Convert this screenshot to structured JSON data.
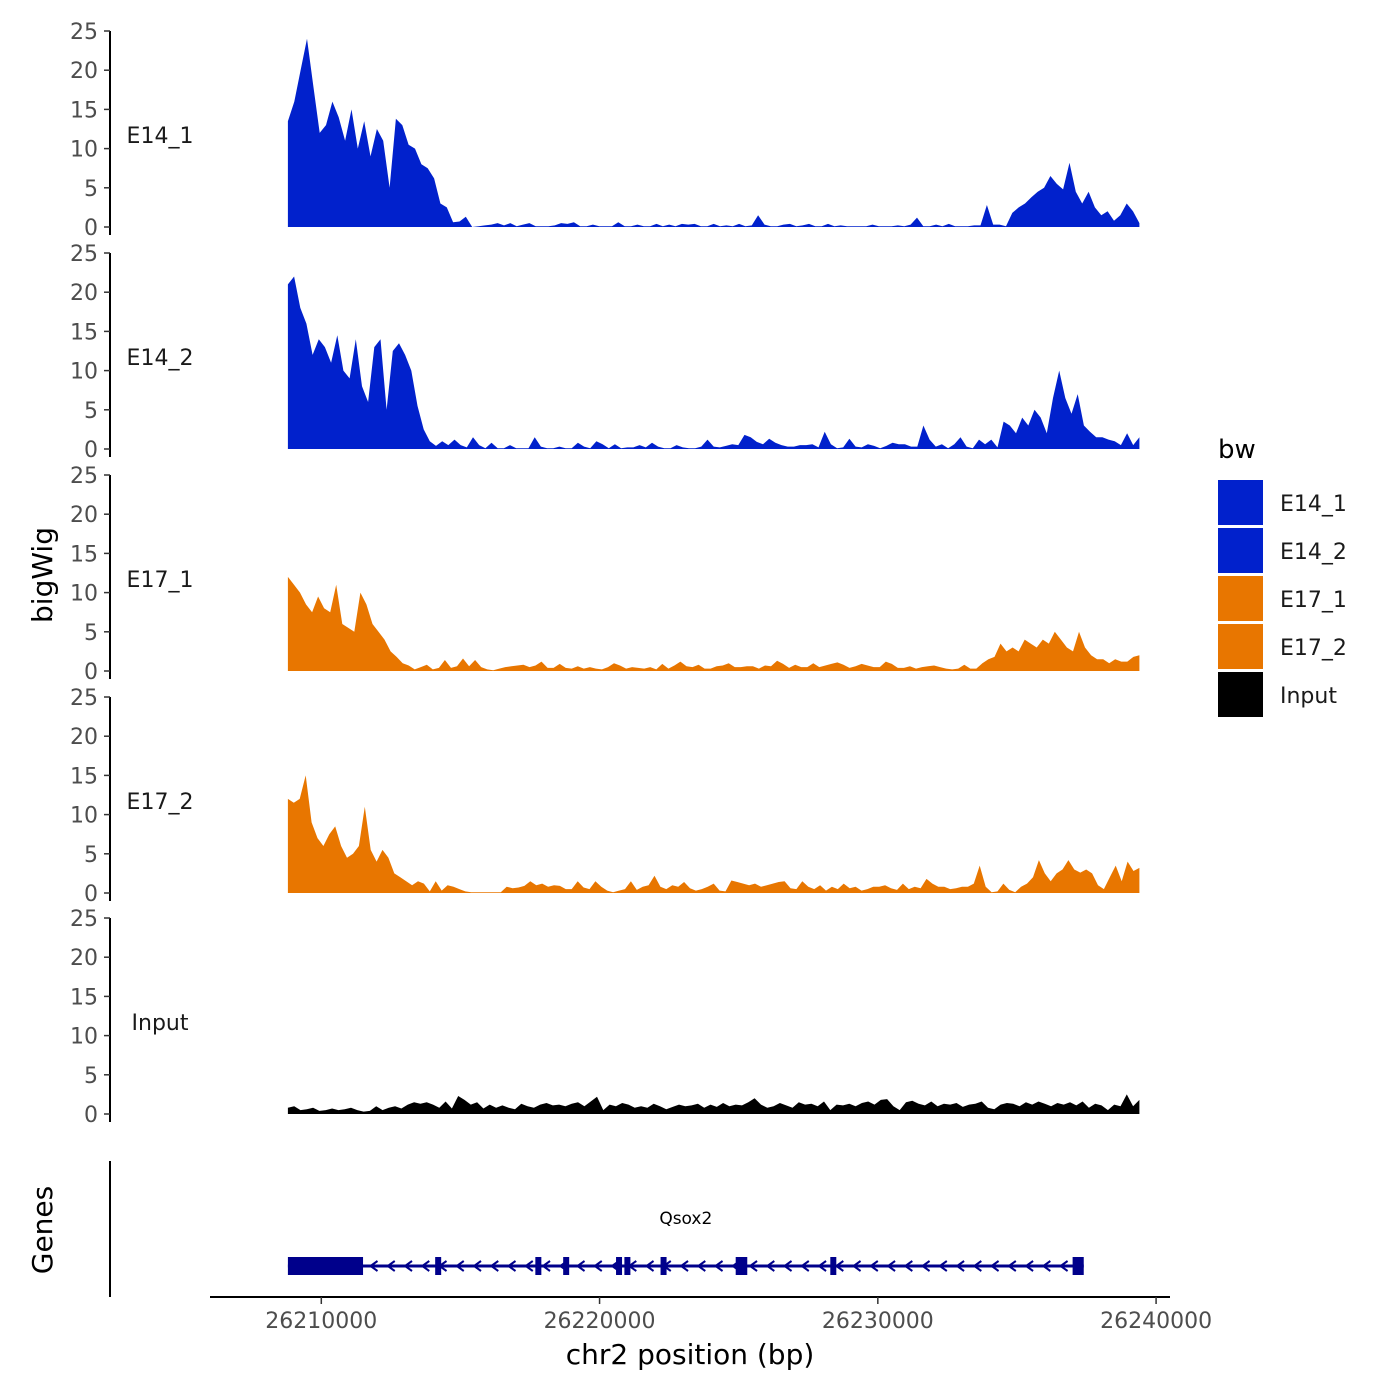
{
  "chart_data": {
    "type": "area",
    "y_axis_title": "bigWig",
    "x_axis_title": "chr2 position (bp)",
    "x_range": [
      26206000,
      26240500
    ],
    "y_range": [
      0,
      25
    ],
    "y_ticks": [
      "0",
      "5",
      "10",
      "15",
      "20",
      "25"
    ],
    "x_ticks": [
      {
        "value": 26210000,
        "label": "26210000"
      },
      {
        "value": 26220000,
        "label": "26220000"
      },
      {
        "value": 26230000,
        "label": "26230000"
      },
      {
        "value": 26240000,
        "label": "26240000"
      }
    ],
    "x_start": 26208800,
    "x_end": 26239400,
    "series": [
      {
        "name": "E14_1",
        "color": "#0121CC",
        "values": [
          13.5,
          16,
          20,
          24,
          18,
          12,
          13,
          16,
          14,
          11,
          15,
          10,
          13.5,
          9,
          12.5,
          11,
          5,
          13.8,
          13,
          10.5,
          10,
          8,
          7.5,
          6.2,
          3,
          2.5,
          0.6,
          0.7,
          1.3,
          0,
          0.1,
          0.2,
          0.3,
          0.5,
          0.2,
          0.5,
          0.1,
          0.3,
          0.5,
          0.1,
          0.1,
          0.1,
          0.2,
          0.5,
          0.4,
          0.6,
          0.1,
          0.1,
          0.3,
          0.1,
          0.1,
          0.1,
          0.6,
          0.1,
          0.1,
          0.3,
          0.1,
          0.1,
          0.4,
          0.1,
          0.3,
          0.1,
          0.4,
          0.3,
          0.4,
          0.1,
          0.1,
          0.4,
          0.1,
          0.2,
          0.1,
          0.4,
          0.1,
          0.2,
          1.5,
          0.3,
          0.1,
          0.1,
          0.3,
          0.4,
          0.1,
          0.2,
          0.4,
          0.1,
          0.1,
          0.4,
          0.1,
          0.2,
          0.1,
          0.1,
          0.1,
          0.1,
          0.3,
          0.1,
          0.1,
          0.1,
          0.2,
          0.1,
          0.3,
          1.2,
          0.1,
          0.1,
          0.3,
          0.1,
          0.4,
          0.1,
          0.1,
          0.1,
          0.2,
          0.2,
          2.8,
          0.3,
          0.3,
          0.1,
          1.8,
          2.5,
          3,
          3.8,
          4.5,
          5,
          6.5,
          5.5,
          4.8,
          8.2,
          4.5,
          3,
          4.5,
          2.5,
          1.5,
          2,
          0.8,
          1.5,
          3,
          2,
          0.5
        ]
      },
      {
        "name": "E14_2",
        "color": "#0121CC",
        "values": [
          21,
          22,
          18,
          16,
          12,
          14,
          13,
          11,
          14.5,
          10,
          9,
          14,
          8,
          6,
          13,
          14,
          5,
          12.5,
          13.5,
          12,
          10,
          5.5,
          2.5,
          1,
          0.4,
          1,
          0.5,
          1.2,
          0.5,
          0.2,
          1.5,
          0.5,
          0.1,
          0.8,
          0.1,
          0.1,
          0.5,
          0.1,
          0.1,
          0.1,
          1.5,
          0.3,
          0.1,
          0.1,
          0.3,
          0.1,
          0.1,
          0.8,
          0.3,
          0.1,
          1,
          0.6,
          0.1,
          0.6,
          0.1,
          0.2,
          0.2,
          0.5,
          0.2,
          0.8,
          0.3,
          0.1,
          0.1,
          0.5,
          0.2,
          0.1,
          0.1,
          0.3,
          1.2,
          0.3,
          0.2,
          0.4,
          0.6,
          0.5,
          1.8,
          1.5,
          0.9,
          0.6,
          1.3,
          0.8,
          0.5,
          0.3,
          0.3,
          0.5,
          0.5,
          0.6,
          0.2,
          2.2,
          0.6,
          0.1,
          0.2,
          1.3,
          0.3,
          0.2,
          0.6,
          0.4,
          0.1,
          0.4,
          0.8,
          0.6,
          0.6,
          0.3,
          0.3,
          3.0,
          1.2,
          0.3,
          0.6,
          0.1,
          0.6,
          1.5,
          0.3,
          0.1,
          1.2,
          0.6,
          1.2,
          0.2,
          3.5,
          3,
          2,
          4,
          3,
          5,
          4,
          2,
          6.5,
          10,
          6.5,
          4.5,
          7,
          3,
          2.2,
          1.5,
          1.5,
          1.2,
          1.0,
          0.5,
          2,
          0.5,
          1.5
        ]
      },
      {
        "name": "E17_1",
        "color": "#E87600",
        "values": [
          12,
          11,
          10,
          8.5,
          7.5,
          9.5,
          8,
          7.5,
          11,
          6,
          5.5,
          5,
          10,
          8.5,
          6,
          5,
          4,
          2.5,
          1.8,
          1,
          0.7,
          0.2,
          0.5,
          0.8,
          0.2,
          0.4,
          1.4,
          0.4,
          0.6,
          1.6,
          0.6,
          1.4,
          0.5,
          0.2,
          0.1,
          0.3,
          0.5,
          0.6,
          0.7,
          0.8,
          0.5,
          0.7,
          1.2,
          0.4,
          0.4,
          0.9,
          0.4,
          0.3,
          0.6,
          0.3,
          0.5,
          0.3,
          0.2,
          0.5,
          1.0,
          0.7,
          0.3,
          0.5,
          0.4,
          0.3,
          0.5,
          0.2,
          0.9,
          0.3,
          0.7,
          1.2,
          0.6,
          0.5,
          0.8,
          0.3,
          0.3,
          0.6,
          0.7,
          1.0,
          0.5,
          0.5,
          0.6,
          0.6,
          0.3,
          0.7,
          0.6,
          1.3,
          0.9,
          0.4,
          0.8,
          0.5,
          0.5,
          1.0,
          0.5,
          0.7,
          0.9,
          1.1,
          0.8,
          0.4,
          0.6,
          0.9,
          0.7,
          0.5,
          0.5,
          1.2,
          0.9,
          0.4,
          0.4,
          0.6,
          0.3,
          0.5,
          0.6,
          0.7,
          0.5,
          0.3,
          0.2,
          0.3,
          0.8,
          0.3,
          0.3,
          1.0,
          1.5,
          1.8,
          3.5,
          2.5,
          3,
          2.5,
          4,
          3.5,
          3,
          4,
          3.5,
          5,
          4,
          3,
          2.5,
          5,
          3,
          2,
          1.5,
          1.5,
          1,
          1.5,
          1.2,
          1.2,
          1.8,
          2
        ]
      },
      {
        "name": "E17_2",
        "color": "#E87600",
        "values": [
          12,
          11.5,
          12,
          15,
          9,
          7,
          6,
          7.5,
          8.5,
          6,
          4.5,
          5,
          6,
          11,
          5.5,
          4,
          5.5,
          4.5,
          2.5,
          2,
          1.5,
          1,
          1.5,
          1.2,
          0.2,
          1.5,
          0.3,
          1,
          0.8,
          0.5,
          0.2,
          0.1,
          0.1,
          0.1,
          0.1,
          0.1,
          0.1,
          0.8,
          0.6,
          0.7,
          0.9,
          1.5,
          1.0,
          1.2,
          0.8,
          1.0,
          0.9,
          0.5,
          0.5,
          1.5,
          0.7,
          0.5,
          1.5,
          0.8,
          0.3,
          0.1,
          0.3,
          0.5,
          1.5,
          0.4,
          0.8,
          1.0,
          2.2,
          0.8,
          0.5,
          1.0,
          0.8,
          1.4,
          0.6,
          0.3,
          0.5,
          0.8,
          1.2,
          0.3,
          0.2,
          1.6,
          1.4,
          1.2,
          1.0,
          1.2,
          0.8,
          1.0,
          1.2,
          1.4,
          1.5,
          0.6,
          0.5,
          1.5,
          0.8,
          0.5,
          1.0,
          0.3,
          0.8,
          0.5,
          1.2,
          0.6,
          0.8,
          0.3,
          0.5,
          0.8,
          0.8,
          1.0,
          0.6,
          0.4,
          1.2,
          0.5,
          0.8,
          0.6,
          1.8,
          1.2,
          0.8,
          0.8,
          0.5,
          0.6,
          0.8,
          0.8,
          1.2,
          3.5,
          0.8,
          0.1,
          0.2,
          1.2,
          0.4,
          0.1,
          0.8,
          1.2,
          2.0,
          4.2,
          2.5,
          1.5,
          2.5,
          3,
          4.2,
          3,
          2.6,
          3,
          2.5,
          1,
          0.5,
          2,
          3.5,
          1.5,
          4,
          2.8,
          3.2
        ]
      },
      {
        "name": "Input",
        "color": "#000000",
        "values": [
          0.8,
          1.0,
          0.5,
          0.6,
          0.8,
          0.4,
          0.5,
          0.7,
          0.5,
          0.6,
          0.8,
          0.5,
          0.3,
          0.4,
          1.0,
          0.5,
          0.8,
          1.0,
          0.7,
          1.2,
          1.5,
          1.3,
          1.5,
          1.2,
          0.8,
          1.6,
          0.7,
          2.3,
          1.8,
          1.2,
          1.5,
          0.7,
          1.2,
          0.8,
          1.1,
          0.8,
          0.6,
          1.3,
          1.0,
          0.8,
          1.2,
          1.4,
          1.1,
          1.2,
          1.0,
          1.3,
          1.5,
          1.0,
          1.6,
          2.2,
          0.5,
          1.2,
          1.0,
          1.4,
          1.2,
          0.8,
          1.0,
          0.8,
          1.3,
          1.0,
          0.6,
          0.9,
          1.2,
          1.0,
          1.1,
          1.3,
          0.8,
          1.2,
          0.9,
          1.4,
          1.0,
          1.2,
          1.1,
          1.5,
          2.0,
          1.2,
          0.8,
          1.0,
          1.4,
          1.1,
          0.8,
          1.5,
          1.2,
          1.3,
          1.0,
          1.6,
          0.5,
          1.2,
          1.1,
          1.3,
          1.0,
          1.4,
          1.6,
          1.2,
          1.8,
          1.9,
          1.0,
          0.5,
          1.5,
          1.7,
          1.3,
          1.1,
          1.6,
          1.0,
          1.3,
          1.2,
          1.4,
          0.9,
          1.2,
          1.3,
          1.6,
          0.8,
          0.6,
          1.2,
          1.4,
          1.3,
          1.0,
          1.5,
          1.2,
          1.6,
          1.3,
          1.0,
          1.4,
          1.2,
          1.5,
          1.1,
          1.6,
          0.8,
          1.3,
          1.1,
          0.5,
          1.2,
          1.0,
          2.5,
          1.0,
          1.8
        ]
      }
    ],
    "gene_track": {
      "title": "Genes",
      "gene_name": "Qsox2",
      "strand": "-",
      "start": 26208800,
      "end": 26237400,
      "thick_blocks": [
        [
          26208800,
          26211500
        ],
        [
          26237000,
          26237400
        ]
      ],
      "exons": [
        26214200,
        26217800,
        26218800,
        26220700,
        26221000,
        26222300,
        26225000,
        26225200,
        26228400
      ]
    },
    "legend": {
      "title": "bw",
      "entries": [
        {
          "label": "E14_1",
          "color": "#0121CC"
        },
        {
          "label": "E14_2",
          "color": "#0121CC"
        },
        {
          "label": "E17_1",
          "color": "#E87600"
        },
        {
          "label": "E17_2",
          "color": "#E87600"
        },
        {
          "label": "Input",
          "color": "#000000"
        }
      ]
    },
    "gene_color": "#00008B"
  }
}
